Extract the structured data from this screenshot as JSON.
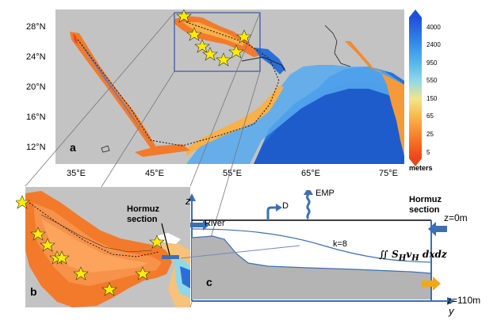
{
  "panel_a": {
    "letter": "a",
    "lat_ticks": [
      "28°N",
      "24°N",
      "20°N",
      "16°N",
      "12°N"
    ],
    "lon_ticks": [
      "35°E",
      "45°E",
      "55°E",
      "65°E",
      "75°E"
    ]
  },
  "colorbar": {
    "labels": [
      "4000",
      "2400",
      "950",
      "550",
      "150",
      "65",
      "25",
      "5"
    ],
    "unit": "meters",
    "colors": [
      "#1f4fd6",
      "#2f7de0",
      "#4fb0ec",
      "#8fd8e8",
      "#f4e58a",
      "#f8b04a",
      "#f37a2a",
      "#e94718"
    ]
  },
  "panel_b": {
    "letter": "b",
    "hormuz_label": "Hormuz section"
  },
  "panel_c": {
    "letter": "c",
    "z_axis": "z",
    "y_axis": "y",
    "river": "River",
    "d_label": "D",
    "emp_label": "EMP",
    "k_label": "k=8",
    "integral": "∬ S",
    "integral_sub1": "H",
    "integral_v": "v",
    "integral_sub2": "H",
    "integral_rest": " dxdz",
    "hormuz_label": "Hormuz section",
    "z_top": "z=0m",
    "z_bottom": "z=110m"
  }
}
